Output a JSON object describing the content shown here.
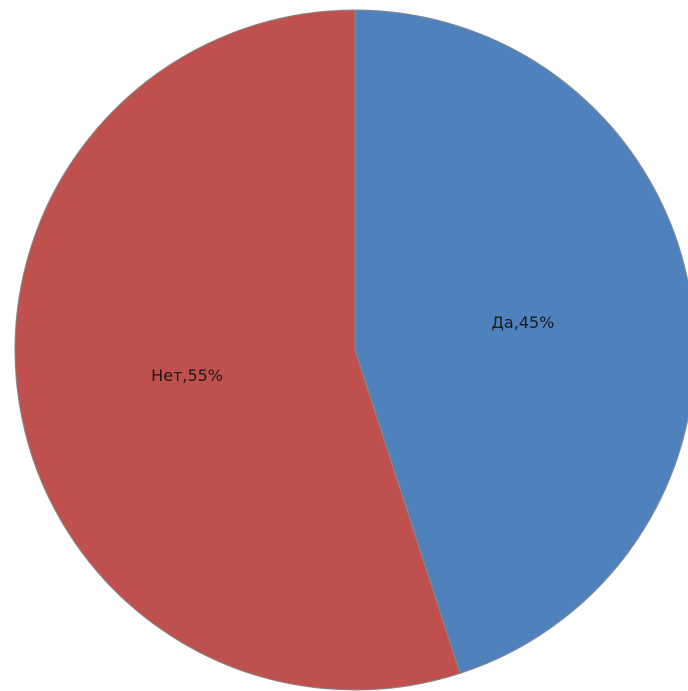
{
  "chart_data": {
    "type": "pie",
    "values": [
      45,
      55
    ],
    "value_labels": [
      "Да,45%",
      "Нет,55%"
    ],
    "colors": [
      "#4f81bd",
      "#c0504d"
    ]
  }
}
